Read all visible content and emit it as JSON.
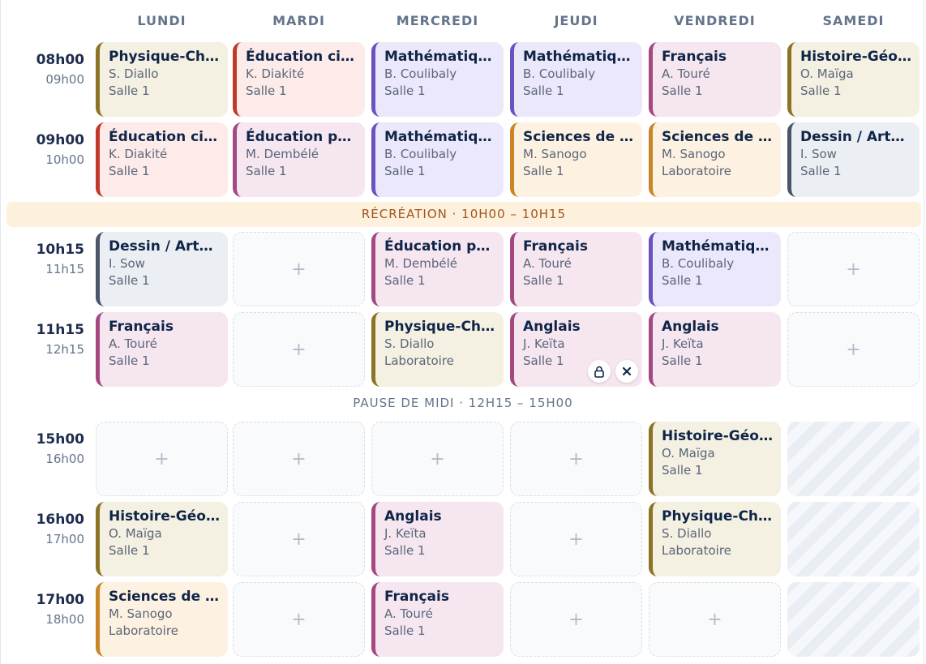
{
  "days": [
    "LUNDI",
    "MARDI",
    "MERCREDI",
    "JEUDI",
    "VENDREDI",
    "SAMEDI"
  ],
  "slots": [
    {
      "start": "08h00",
      "end": "09h00"
    },
    {
      "start": "09h00",
      "end": "10h00"
    },
    {
      "start": "10h15",
      "end": "11h15"
    },
    {
      "start": "11h15",
      "end": "12h15"
    },
    {
      "start": "15h00",
      "end": "16h00"
    },
    {
      "start": "16h00",
      "end": "17h00"
    },
    {
      "start": "17h00",
      "end": "18h00"
    }
  ],
  "break_label": "RÉCRÉATION · 10H00 – 10H15",
  "lunch_label": "PAUSE DE MIDI · 12H15 – 15H00",
  "empty_label": "+",
  "lock_icon": "lock-icon",
  "remove_icon": "close-icon",
  "colors": {
    "olive": {
      "border": "#8b7426",
      "bg": "#f4f0e2"
    },
    "red": {
      "border": "#c0392b",
      "bg": "#fdebea"
    },
    "purple": {
      "border": "#6b52c0",
      "bg": "#ece8fb"
    },
    "pink": {
      "border": "#a4487f",
      "bg": "#f5e6f0"
    },
    "orange": {
      "border": "#c98526",
      "bg": "#fdf1e1"
    },
    "slate": {
      "border": "#4a5568",
      "bg": "#ebeff3"
    }
  },
  "grid": [
    [
      {
        "subject": "Physique-Chimie",
        "teacher": "S. Diallo",
        "room": "Salle 1",
        "color": "olive"
      },
      {
        "subject": "Éducation civique",
        "teacher": "K. Diakité",
        "room": "Salle 1",
        "color": "red"
      },
      {
        "subject": "Dessin / Arts plastiques",
        "teacher": "I. Sow",
        "room": "Salle 1",
        "color": "slate"
      },
      {
        "subject": "Français",
        "teacher": "A. Touré",
        "room": "Salle 1",
        "color": "pink"
      },
      null,
      {
        "subject": "Histoire-Géographie",
        "teacher": "O. Maïga",
        "room": "Salle 1",
        "color": "olive"
      },
      {
        "subject": "Sciences de la vie",
        "teacher": "M. Sanogo",
        "room": "Laboratoire",
        "color": "orange"
      }
    ],
    [
      {
        "subject": "Éducation civique",
        "teacher": "K. Diakité",
        "room": "Salle 1",
        "color": "red"
      },
      {
        "subject": "Éducation physique",
        "teacher": "M. Dembélé",
        "room": "Salle 1",
        "color": "pink"
      },
      null,
      null,
      null,
      null,
      null
    ],
    [
      {
        "subject": "Mathématiques",
        "teacher": "B. Coulibaly",
        "room": "Salle 1",
        "color": "purple"
      },
      {
        "subject": "Mathématiques",
        "teacher": "B. Coulibaly",
        "room": "Salle 1",
        "color": "purple"
      },
      {
        "subject": "Éducation physique",
        "teacher": "M. Dembélé",
        "room": "Salle 1",
        "color": "pink"
      },
      {
        "subject": "Physique-Chimie",
        "teacher": "S. Diallo",
        "room": "Laboratoire",
        "color": "olive"
      },
      null,
      {
        "subject": "Anglais",
        "teacher": "J. Keïta",
        "room": "Salle 1",
        "color": "pink"
      },
      {
        "subject": "Français",
        "teacher": "A. Touré",
        "room": "Salle 1",
        "color": "pink"
      }
    ],
    [
      {
        "subject": "Mathématiques",
        "teacher": "B. Coulibaly",
        "room": "Salle 1",
        "color": "purple"
      },
      {
        "subject": "Sciences de la vie",
        "teacher": "M. Sanogo",
        "room": "Salle 1",
        "color": "orange"
      },
      {
        "subject": "Français",
        "teacher": "A. Touré",
        "room": "Salle 1",
        "color": "pink"
      },
      {
        "subject": "Anglais",
        "teacher": "J. Keïta",
        "room": "Salle 1",
        "color": "pink",
        "controls": true
      },
      null,
      null,
      null
    ],
    [
      {
        "subject": "Français",
        "teacher": "A. Touré",
        "room": "Salle 1",
        "color": "pink"
      },
      {
        "subject": "Sciences de la vie",
        "teacher": "M. Sanogo",
        "room": "Laboratoire",
        "color": "orange"
      },
      {
        "subject": "Mathématiques",
        "teacher": "B. Coulibaly",
        "room": "Salle 1",
        "color": "purple"
      },
      {
        "subject": "Anglais",
        "teacher": "J. Keïta",
        "room": "Salle 1",
        "color": "pink"
      },
      {
        "subject": "Histoire-Géographie",
        "teacher": "O. Maïga",
        "room": "Salle 1",
        "color": "olive"
      },
      {
        "subject": "Physique-Chimie",
        "teacher": "S. Diallo",
        "room": "Laboratoire",
        "color": "olive"
      },
      null
    ],
    [
      {
        "subject": "Histoire-Géographie",
        "teacher": "O. Maïga",
        "room": "Salle 1",
        "color": "olive"
      },
      {
        "subject": "Dessin / Arts plastiques",
        "teacher": "I. Sow",
        "room": "Salle 1",
        "color": "slate"
      },
      null,
      null,
      "blocked",
      "blocked",
      "blocked"
    ]
  ]
}
